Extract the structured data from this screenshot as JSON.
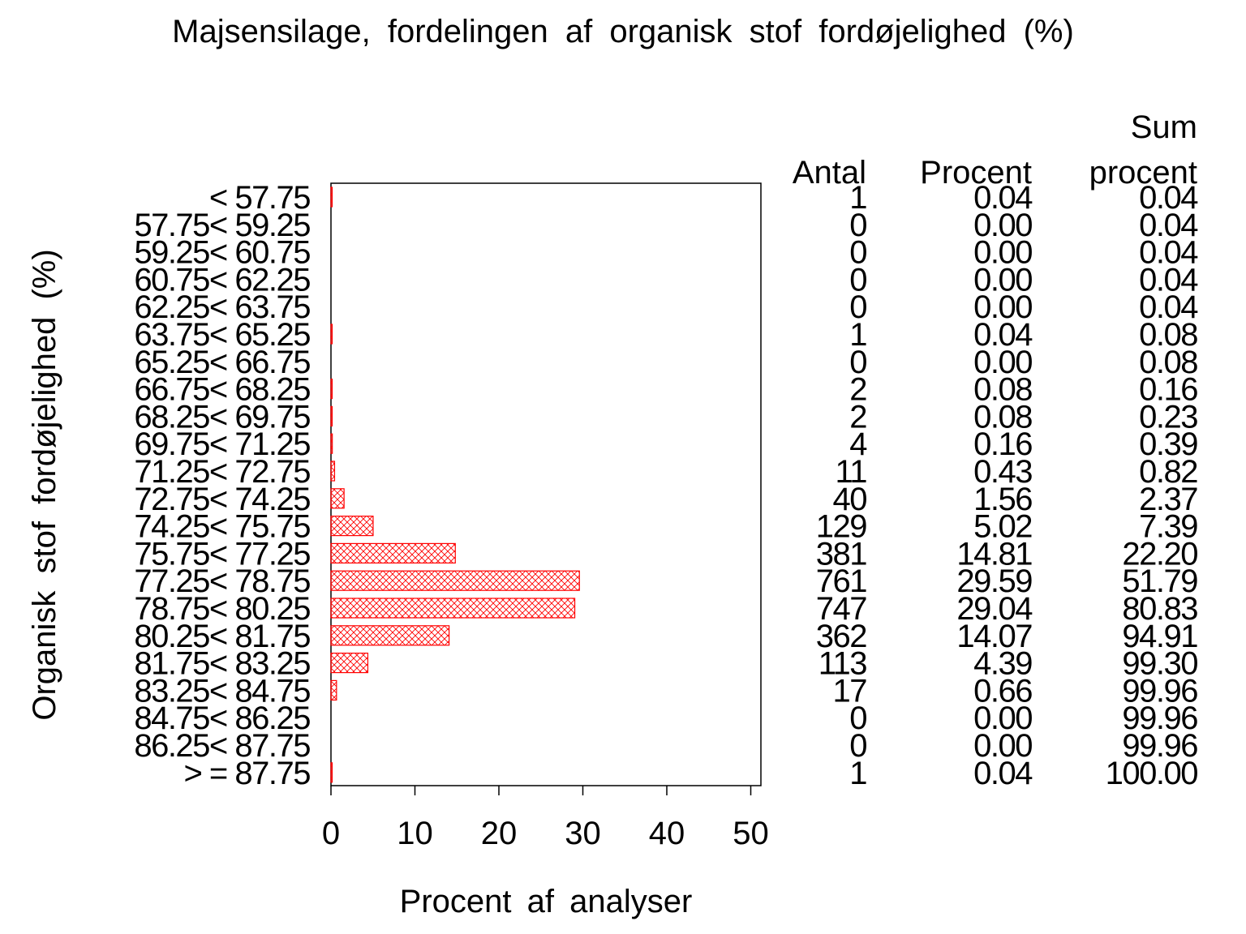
{
  "chart_data": {
    "type": "bar",
    "orientation": "horizontal",
    "title": "Majsensilage, fordelingen af organisk stof fordøjelighed (%)",
    "xlabel": "Procent af analyser",
    "ylabel": "Organisk stof fordøjelighed (%)",
    "xlim": [
      0,
      51
    ],
    "xticks": [
      "0",
      "10",
      "20",
      "30",
      "40",
      "50"
    ],
    "grid": false,
    "bar_color": "#ff0000",
    "bar_pattern": "crosshatch",
    "categories": [
      "< 57.75",
      "57.75< 59.25",
      "59.25< 60.75",
      "60.75< 62.25",
      "62.25< 63.75",
      "63.75< 65.25",
      "65.25< 66.75",
      "66.75< 68.25",
      "68.25< 69.75",
      "69.75< 71.25",
      "71.25< 72.75",
      "72.75< 74.25",
      "74.25< 75.75",
      "75.75< 77.25",
      "77.25< 78.75",
      "78.75< 80.25",
      "80.25< 81.75",
      "81.75< 83.25",
      "83.25< 84.75",
      "84.75< 86.25",
      "86.25< 87.75",
      "> = 87.75"
    ],
    "values": [
      0.04,
      0.0,
      0.0,
      0.0,
      0.0,
      0.04,
      0.0,
      0.08,
      0.08,
      0.16,
      0.43,
      1.56,
      5.02,
      14.81,
      29.59,
      29.04,
      14.07,
      4.39,
      0.66,
      0.0,
      0.0,
      0.04
    ],
    "table": {
      "header_antal": "Antal",
      "header_procent": "Procent",
      "header_sum_line1": "Sum",
      "header_sum_line2": "procent",
      "antal": [
        "1",
        "0",
        "0",
        "0",
        "0",
        "1",
        "0",
        "2",
        "2",
        "4",
        "11",
        "40",
        "129",
        "381",
        "761",
        "747",
        "362",
        "113",
        "17",
        "0",
        "0",
        "1"
      ],
      "procent": [
        "0.04",
        "0.00",
        "0.00",
        "0.00",
        "0.00",
        "0.04",
        "0.00",
        "0.08",
        "0.08",
        "0.16",
        "0.43",
        "1.56",
        "5.02",
        "14.81",
        "29.59",
        "29.04",
        "14.07",
        "4.39",
        "0.66",
        "0.00",
        "0.00",
        "0.04"
      ],
      "sum_procent": [
        "0.04",
        "0.04",
        "0.04",
        "0.04",
        "0.04",
        "0.08",
        "0.08",
        "0.16",
        "0.23",
        "0.39",
        "0.82",
        "2.37",
        "7.39",
        "22.20",
        "51.79",
        "80.83",
        "94.91",
        "99.30",
        "99.96",
        "99.96",
        "99.96",
        "100.00"
      ]
    }
  }
}
